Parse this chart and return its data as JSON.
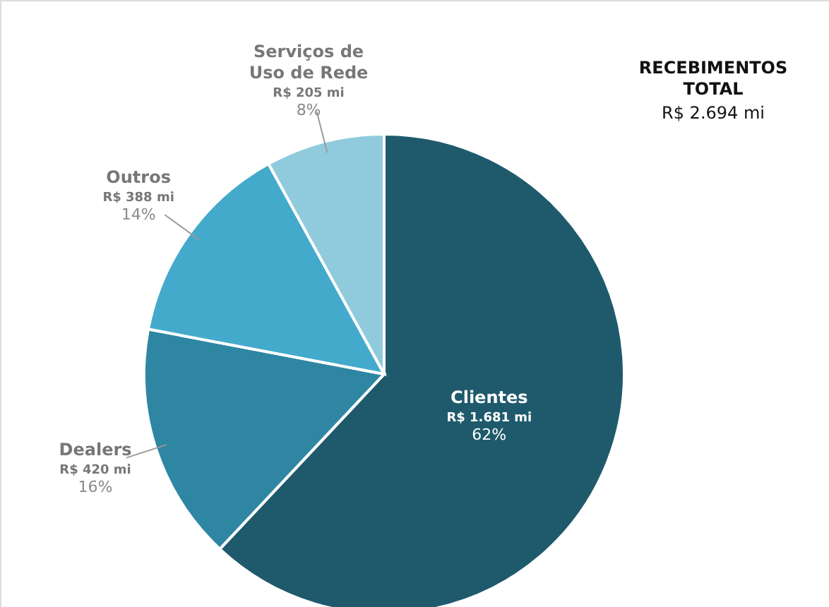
{
  "chart_data": {
    "type": "pie",
    "title": "RECEBIMENTOS\nTOTAL",
    "subtitle": "R$ 2.694 mi",
    "categories": [
      "Clientes",
      "Dealers",
      "Outros",
      "Serviços de\nUso de Rede"
    ],
    "values": [
      62,
      16,
      14,
      8
    ],
    "colors": [
      "#1f5a6c",
      "#2e86a3",
      "#43aacb",
      "#8fcbdd"
    ],
    "value_labels": [
      "R$ 1.681 mi\n62%",
      "R$ 420 mi\n16%",
      "R$ 388 mi\n14%",
      "R$ 205 mi\n8%"
    ]
  }
}
